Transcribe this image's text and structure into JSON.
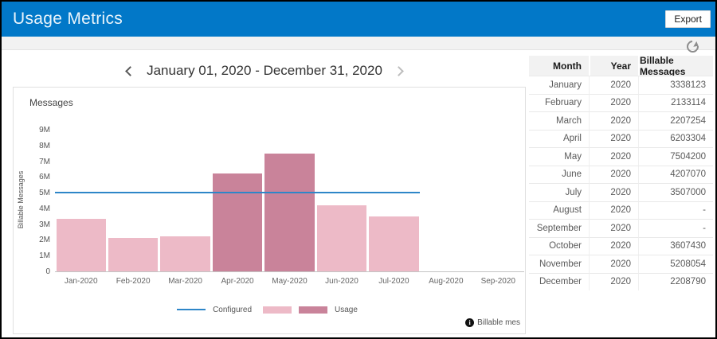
{
  "header": {
    "title": "Usage Metrics",
    "export_label": "Export"
  },
  "toolbar": {
    "refresh_icon": "refresh-icon"
  },
  "date_nav": {
    "label": "January 01, 2020 - December 31, 2020"
  },
  "colors": {
    "header_bg": "#0278c8",
    "bar_light": "#edbac7",
    "bar_dark": "#c9839a",
    "configured_line": "#2e86c8"
  },
  "chart_data": {
    "type": "bar",
    "title": "Messages",
    "ylabel": "Billable Messages",
    "xlabel": "",
    "ylim": [
      0,
      9000000
    ],
    "ytick_labels": [
      "0",
      "1M",
      "2M",
      "3M",
      "4M",
      "5M",
      "6M",
      "7M",
      "8M",
      "9M"
    ],
    "grid": false,
    "categories": [
      "Jan-2020",
      "Feb-2020",
      "Mar-2020",
      "Apr-2020",
      "May-2020",
      "Jun-2020",
      "Jul-2020",
      "Aug-2020",
      "Sep-2020"
    ],
    "series": [
      {
        "name": "Usage",
        "values": [
          3338123,
          2133114,
          2207254,
          6203304,
          7504200,
          4207070,
          3507000,
          null,
          null
        ],
        "bar_shades": [
          "light",
          "light",
          "light",
          "dark",
          "dark",
          "light",
          "light",
          null,
          null
        ]
      }
    ],
    "configured_line": {
      "name": "Configured",
      "value": 5000000,
      "span_slots": 7
    },
    "legend": {
      "position": "bottom-center",
      "items": [
        {
          "swatch": "line",
          "label": "Configured"
        },
        {
          "swatch": "light",
          "label": ""
        },
        {
          "swatch": "dark",
          "label": "Usage"
        }
      ]
    },
    "note": {
      "icon": "info-icon",
      "icon_glyph": "i",
      "text": "Billable mes"
    }
  },
  "table": {
    "columns": [
      "Month",
      "Year",
      "Billable Messages"
    ],
    "rows": [
      {
        "month": "January",
        "year": "2020",
        "billable": "3338123"
      },
      {
        "month": "February",
        "year": "2020",
        "billable": "2133114"
      },
      {
        "month": "March",
        "year": "2020",
        "billable": "2207254"
      },
      {
        "month": "April",
        "year": "2020",
        "billable": "6203304"
      },
      {
        "month": "May",
        "year": "2020",
        "billable": "7504200"
      },
      {
        "month": "June",
        "year": "2020",
        "billable": "4207070"
      },
      {
        "month": "July",
        "year": "2020",
        "billable": "3507000"
      },
      {
        "month": "August",
        "year": "2020",
        "billable": "-"
      },
      {
        "month": "September",
        "year": "2020",
        "billable": "-"
      },
      {
        "month": "October",
        "year": "2020",
        "billable": "3607430"
      },
      {
        "month": "November",
        "year": "2020",
        "billable": "5208054"
      },
      {
        "month": "December",
        "year": "2020",
        "billable": "2208790"
      }
    ]
  }
}
